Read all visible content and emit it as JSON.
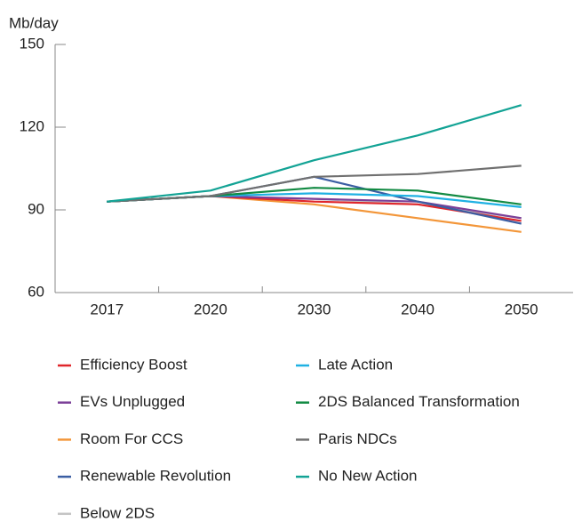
{
  "chart_data": {
    "type": "line",
    "y_label": "Mb/day",
    "categories": [
      "2017",
      "2020",
      "2030",
      "2040",
      "2050"
    ],
    "ylim": [
      60,
      150
    ],
    "yticks": [
      60,
      90,
      120,
      150
    ],
    "series": [
      {
        "name": "Efficiency Boost",
        "color": "#e0262b",
        "values": [
          93,
          95,
          93,
          92,
          86
        ]
      },
      {
        "name": "Late Action",
        "color": "#1fb1e3",
        "values": [
          93,
          95,
          96,
          95,
          91
        ]
      },
      {
        "name": "EVs Unplugged",
        "color": "#7b3f98",
        "values": [
          93,
          95,
          94,
          93,
          87
        ]
      },
      {
        "name": "2DS Balanced Transformation",
        "color": "#128a43",
        "values": [
          93,
          95,
          98,
          97,
          92
        ]
      },
      {
        "name": "Room For CCS",
        "color": "#f39639",
        "values": [
          93,
          95,
          92,
          87,
          82
        ]
      },
      {
        "name": "Paris NDCs",
        "color": "#707070",
        "values": [
          93,
          95,
          102,
          103,
          106
        ]
      },
      {
        "name": "Renewable Revolution",
        "color": "#3b5ea3",
        "values": [
          93,
          95,
          102,
          93,
          85
        ]
      },
      {
        "name": "No New Action",
        "color": "#13a395",
        "values": [
          93,
          97,
          108,
          117,
          128
        ]
      },
      {
        "name": "Below 2DS",
        "color": "#c4c4c4",
        "values": [
          93,
          95,
          94,
          92,
          87
        ]
      }
    ]
  }
}
